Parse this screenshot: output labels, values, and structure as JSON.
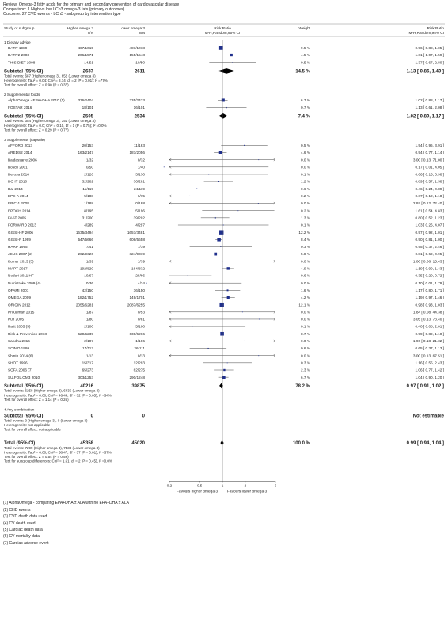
{
  "header": {
    "review": "Review: Omega-3 fatty acids for the primary and secondary prevention of cardiovascular disease",
    "comparison": "Comparison: 1 High vs low LCn3 omega-3 fats (primary outcomes)",
    "outcome": "Outcome: 27 CVD events - LCn3 - subgroup by intervention type"
  },
  "columns": {
    "study": "Study or subgroup",
    "high": "Higher omega 3",
    "low": "Lower omega 3",
    "nn": "n/N",
    "rr_plot": "Risk Ratio",
    "rr_plot_sub": "M-H,Random,95% CI",
    "weight": "Weight",
    "rr": "Risk Ratio",
    "rr_sub": "M-H,Random,95% CI"
  },
  "chart_data": {
    "type": "forest",
    "x_scale": "log",
    "xlim": [
      0.2,
      5
    ],
    "ticks": [
      "0.2",
      "0.5",
      "1",
      "2",
      "5"
    ],
    "favours_left": "Favours higher omega 3",
    "favours_right": "Favours lower omega 3",
    "groups": [
      {
        "title": "1 Dietary advice",
        "studies": [
          {
            "name": "DART 1989",
            "high": "467/1015",
            "low": "487/1018",
            "weight": "9.5 %",
            "rr": "0.96 [ 0.88, 1.05 ]",
            "est": 0.96,
            "lo": 0.88,
            "hi": 1.05
          },
          {
            "name": "DART2 2003",
            "high": "206/1571",
            "low": "155/1543",
            "weight": "4.5 %",
            "rr": "1.31 [ 1.07, 1.59 ]",
            "est": 1.31,
            "lo": 1.07,
            "hi": 1.59
          },
          {
            "name": "THIS DIET 2008",
            "high": "14/51",
            "low": "10/50",
            "weight": "0.5 %",
            "rr": "1.37 [ 0.67, 2.80 ]",
            "est": 1.37,
            "lo": 0.67,
            "hi": 2.8
          }
        ],
        "subtotal": {
          "label": "Subtotal (95% CI)",
          "high": "2637",
          "low": "2611",
          "weight": "14.5 %",
          "rr": "1.13 [ 0.86, 1.49 ]",
          "est": 1.13,
          "lo": 0.86,
          "hi": 1.49
        },
        "notes": [
          "Total events: 687 (Higher omega 3), 652 (Lower omega 3)",
          "Heterogeneity: Tau² = 0.04; Chi² = 8.74, df = 2 (P = 0.01); I² =77%",
          "Test for overall effect: Z = 0.90 (P = 0.37)"
        ]
      },
      {
        "title": "2 Supplemental foods",
        "studies": [
          {
            "name": "AlphaOmega - EPA+DHA 2010 (1)",
            "high": "336/2404",
            "low": "335/2433",
            "weight": "6.7 %",
            "rr": "1.02 [ 0.88, 1.17 ]",
            "est": 1.02,
            "lo": 0.88,
            "hi": 1.17
          },
          {
            "name": "FOSTAR 2016",
            "high": "18/101",
            "low": "16/101",
            "weight": "0.7 %",
            "rr": "1.13 [ 0.61, 2.08 ]",
            "est": 1.13,
            "lo": 0.61,
            "hi": 2.08
          }
        ],
        "subtotal": {
          "label": "Subtotal (95% CI)",
          "high": "2505",
          "low": "2534",
          "weight": "7.4 %",
          "rr": "1.02 [ 0.89, 1.17 ]",
          "est": 1.02,
          "lo": 0.89,
          "hi": 1.17
        },
        "notes": [
          "Total events: 354 (Higher omega 3), 351 (Lower omega 3)",
          "Heterogeneity: Tau² = 0.0; Chi² = 0.10, df = 1 (P = 0.75); I² =0.0%",
          "Test for overall effect: Z = 0.29 (P = 0.77)"
        ]
      },
      {
        "title": "3 Supplements (capsule)",
        "studies": [
          {
            "name": "AFFORD 2013",
            "high": "20/153",
            "low": "11/163",
            "weight": "0.5 %",
            "rr": "1.94 [ 0.96, 3.91 ]",
            "est": 1.94,
            "lo": 0.96,
            "hi": 3.91
          },
          {
            "name": "AREDS2 2014",
            "high": "163/2147",
            "low": "187/2056",
            "weight": "4.6 %",
            "rr": "0.94 [ 0.77, 1.14 ]",
            "est": 0.94,
            "lo": 0.77,
            "hi": 1.14
          },
          {
            "name": "Baldassarre 2006",
            "high": "1/32",
            "low": "0/32",
            "weight": "0.0 %",
            "rr": "3.00 [ 0.13, 71.00 ]",
            "est": 3.0,
            "lo": 0.13,
            "hi": 71.0
          },
          {
            "name": "Bosch 2001",
            "high": "0/50",
            "low": "1/40",
            "weight": "0.0 %",
            "rr": "0.17 [ 0.01, 4.05 ]",
            "est": 0.17,
            "lo": 0.01,
            "hi": 4.05
          },
          {
            "name": "Derosa 2016",
            "high": "2/126",
            "low": "3/130",
            "weight": "0.1 %",
            "rr": "0.66 [ 0.13, 3.98 ]",
            "est": 0.66,
            "lo": 0.13,
            "hi": 3.98
          },
          {
            "name": "DO IT 2010",
            "high": "32/282",
            "low": "36/281",
            "weight": "1.2 %",
            "rr": "0.89 [ 0.57, 1.38 ]",
            "est": 0.89,
            "lo": 0.57,
            "hi": 1.38
          },
          {
            "name": "Dai 2014",
            "high": "11/119",
            "low": "24/119",
            "weight": "0.6 %",
            "rr": "0.46 [ 0.24, 0.89 ]",
            "est": 0.46,
            "lo": 0.24,
            "hi": 0.89
          },
          {
            "name": "EPE-A 2014",
            "high": "5/188",
            "low": "6/75",
            "weight": "0.2 %",
            "rr": "0.37 [ 0.12, 1.18 ]",
            "est": 0.37,
            "lo": 0.12,
            "hi": 1.18
          },
          {
            "name": "EPIC-1 2008",
            "high": "1/188",
            "low": "0/188",
            "weight": "0.0 %",
            "rr": "2.97 [ 0.12, 72.40 ]",
            "est": 2.97,
            "lo": 0.12,
            "hi": 72.4
          },
          {
            "name": "EPOCH 2014",
            "high": "8/195",
            "low": "5/196",
            "weight": "0.2 %",
            "rr": "1.61 [ 0.54, 4.83 ]",
            "est": 1.61,
            "lo": 0.54,
            "hi": 4.83
          },
          {
            "name": "FAAT 2005",
            "high": "31/200",
            "low": "39/202",
            "weight": "1.3 %",
            "rr": "0.80 [ 0.52, 1.23 ]",
            "est": 0.8,
            "lo": 0.52,
            "hi": 1.23
          },
          {
            "name": "FORWARD 2013",
            "high": "4/289",
            "low": "4/297",
            "weight": "0.1 %",
            "rr": "1.03 [ 0.26, 4.07 ]",
            "est": 1.03,
            "lo": 0.26,
            "hi": 4.07
          },
          {
            "name": "GISSI-HF 2006",
            "high": "1635/3494",
            "low": "1657/3481",
            "weight": "12.2 %",
            "rr": "0.97 [ 0.92, 1.01 ]",
            "est": 0.97,
            "lo": 0.92,
            "hi": 1.01
          },
          {
            "name": "GISSI-P 1999",
            "high": "547/5666",
            "low": "608/5658",
            "weight": "8.4 %",
            "rr": "0.90 [ 0.81, 1.00 ]",
            "est": 0.9,
            "lo": 0.81,
            "hi": 1.0
          },
          {
            "name": "HARP 1995",
            "high": "7/41",
            "low": "7/39",
            "weight": "0.3 %",
            "rr": "0.95 [ 0.37, 2.46 ]",
            "est": 0.95,
            "lo": 0.37,
            "hi": 2.46
          },
          {
            "name": "JELIS 2007 (2)",
            "high": "262/9326",
            "low": "324/9319",
            "weight": "5.8 %",
            "rr": "0.81 [ 0.69, 0.95 ]",
            "est": 0.81,
            "lo": 0.69,
            "hi": 0.95
          },
          {
            "name": "Kumar 2013 (3)",
            "high": "1/39",
            "low": "1/39",
            "weight": "0.0 %",
            "rr": "1.00 [ 0.06, 15.43 ]",
            "est": 1.0,
            "lo": 0.06,
            "hi": 15.43
          },
          {
            "name": "MAPT 2017",
            "high": "192/820",
            "low": "164/832",
            "weight": "4.9 %",
            "rr": "1.19 [ 0.99, 1.43 ]",
            "est": 1.19,
            "lo": 0.99,
            "hi": 1.43
          },
          {
            "name": "Nodari 2011 HF",
            "high": "10/67",
            "low": "28/66",
            "weight": "0.6 %",
            "rr": "0.35 [ 0.20, 0.72 ]",
            "est": 0.35,
            "lo": 0.2,
            "hi": 0.72
          },
          {
            "name": "Nutristroke 2009 (4)",
            "high": "0/36",
            "low": "4/34",
            "weight": "0.0 %",
            "rr": "0.10 [ 0.01, 1.79 ]",
            "est": 0.1,
            "lo": 0.01,
            "hi": 1.79
          },
          {
            "name": "OFAMI 2001",
            "high": "42/150",
            "low": "36/150",
            "weight": "1.6 %",
            "rr": "1.17 [ 0.80, 1.71 ]",
            "est": 1.17,
            "lo": 0.8,
            "hi": 1.71
          },
          {
            "name": "OMEGA 2009",
            "high": "182/1752",
            "low": "149/1701",
            "weight": "4.2 %",
            "rr": "1.19 [ 0.97, 1.46 ]",
            "est": 1.19,
            "lo": 0.97,
            "hi": 1.46
          },
          {
            "name": "ORIGIN 2012",
            "high": "2055/6281",
            "low": "2087/6255",
            "weight": "12.1 %",
            "rr": "0.98 [ 0.93, 1.03 ]",
            "est": 0.98,
            "lo": 0.93,
            "hi": 1.03
          },
          {
            "name": "Proudman 2015",
            "high": "1/87",
            "low": "0/53",
            "weight": "0.0 %",
            "rr": "1.84 [ 0.08, 44.38 ]",
            "est": 1.84,
            "lo": 0.08,
            "hi": 44.38
          },
          {
            "name": "Puri 2005",
            "high": "1/80",
            "low": "0/81",
            "weight": "0.0 %",
            "rr": "3.05 [ 0.13, 73.40 ]",
            "est": 3.05,
            "lo": 0.13,
            "hi": 73.4
          },
          {
            "name": "Raitt 2005 (5)",
            "high": "2/100",
            "low": "5/100",
            "weight": "0.1 %",
            "rr": "0.40 [ 0.08, 2.01 ]",
            "est": 0.4,
            "lo": 0.08,
            "hi": 2.01
          },
          {
            "name": "Risk & Prevention 2013",
            "high": "620/6239",
            "low": "630/6266",
            "weight": "8.7 %",
            "rr": "0.99 [ 0.89, 1.10 ]",
            "est": 0.99,
            "lo": 0.89,
            "hi": 1.1
          },
          {
            "name": "Sandhu 2016",
            "high": "2/107",
            "low": "1/106",
            "weight": "0.0 %",
            "rr": "1.96 [ 0.18, 21.32 ]",
            "est": 1.96,
            "lo": 0.18,
            "hi": 21.32
          },
          {
            "name": "SCIMO 1999",
            "high": "17/112",
            "low": "26/111",
            "weight": "0.6 %",
            "rr": "0.65 [ 0.37, 1.13 ]",
            "est": 0.65,
            "lo": 0.37,
            "hi": 1.13
          },
          {
            "name": "Shinto 2014 (6)",
            "high": "1/13",
            "low": "0/13",
            "weight": "0.0 %",
            "rr": "3.00 [ 0.13, 67.51 ]",
            "est": 3.0,
            "lo": 0.13,
            "hi": 67.51
          },
          {
            "name": "SHOT 1996",
            "high": "15/317",
            "low": "12/293",
            "weight": "0.3 %",
            "rr": "1.16 [ 0.55, 2.43 ]",
            "est": 1.16,
            "lo": 0.55,
            "hi": 2.43
          },
          {
            "name": "SOFA 2006 (7)",
            "high": "65/273",
            "low": "62/275",
            "weight": "2.3 %",
            "rr": "1.06 [ 0.77, 1.42 ]",
            "est": 1.06,
            "lo": 0.77,
            "hi": 1.42
          },
          {
            "name": "SU.FOL.OM3 2010",
            "high": "303/1253",
            "low": "290/1248",
            "weight": "6.7 %",
            "rr": "1.04 [ 0.90, 1.20 ]",
            "est": 1.04,
            "lo": 0.9,
            "hi": 1.2
          }
        ],
        "subtotal": {
          "label": "Subtotal (95% CI)",
          "high": "40216",
          "low": "39875",
          "weight": "78.2 %",
          "rr": "0.97 [ 0.91, 1.02 ]",
          "est": 0.97,
          "lo": 0.91,
          "hi": 1.02
        },
        "notes": [
          "Total events: 6258 (Higher omega 3), 6435 (Lower omega 3)",
          "Heterogeneity: Tau² = 0.00; Chi² = 46.44, df = 32 (P = 0.05); I² =34%",
          "Test for overall effect: Z = 1.14 (P = 0.26)"
        ]
      },
      {
        "title": "4 Any combination",
        "studies": [],
        "subtotal": {
          "label": "Subtotal (95% CI)",
          "high": "0",
          "low": "0",
          "weight": "",
          "rr": "Not estimable",
          "est": null,
          "lo": null,
          "hi": null
        },
        "notes": [
          "Total events: 0 (Higher omega 3), 0 (Lower omega 3)",
          "Heterogeneity: not applicable",
          "Test for overall effect: not applicable"
        ]
      }
    ],
    "total": {
      "label": "Total (95% CI)",
      "high": "45358",
      "low": "45020",
      "weight": "100.0 %",
      "rr": "0.99 [ 0.94, 1.04 ]",
      "est": 0.99,
      "lo": 0.94,
      "hi": 1.04
    },
    "total_notes": [
      "Total events: 7299 (Higher omega 3), 7438 (Lower omega 3)",
      "Heterogeneity: Tau² = 0.00; Chi² = 58.47, df = 37 (P = 0.01); I² =37%",
      "Test for overall effect: Z = 0.54 (P = 0.59)",
      "Test for subgroup differences: Chi² = 1.61, df = 2 (P = 0.45), I² =0.0%"
    ]
  },
  "footnotes": [
    "(1) AlphaOmega - comparing EPA+DHA ± ALA with no EPA+DHA ± ALA",
    "(2) CHD events",
    "(3) CVD death data used",
    "(4) CV death used",
    "(5) Cardiac death data",
    "(6) CV mortality data",
    "(7) Cardiac adverse event"
  ]
}
